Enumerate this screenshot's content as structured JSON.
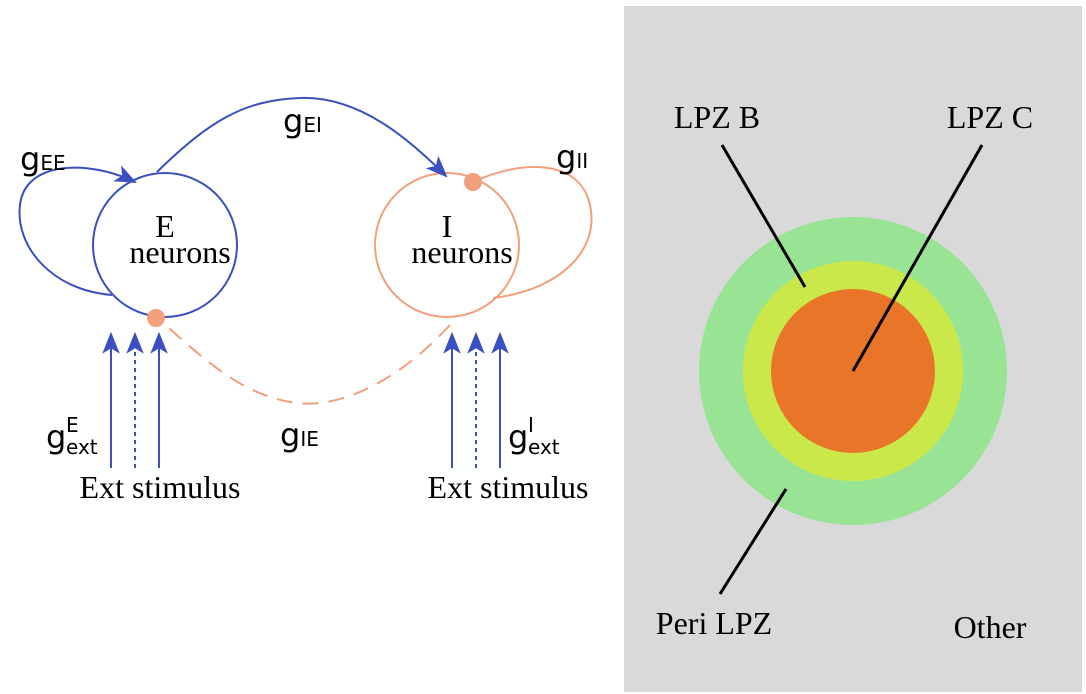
{
  "panel_a": {
    "e_population": {
      "line1": "E",
      "line2": "neurons"
    },
    "i_population": {
      "line1": "I",
      "line2": "neurons"
    },
    "labels": {
      "gEE": {
        "base": "g",
        "sub": "EE"
      },
      "gEI": {
        "base": "g",
        "sub": "EI"
      },
      "gII": {
        "base": "g",
        "sub": "II"
      },
      "gIE": {
        "base": "g",
        "sub": "IE"
      },
      "gextE": {
        "base": "g",
        "sup": "E",
        "sub": "ext"
      },
      "gextI": {
        "base": "g",
        "sup": "I",
        "sub": "ext"
      }
    },
    "stimulus_label_left": "Ext stimulus",
    "stimulus_label_right": "Ext stimulus",
    "colors": {
      "excitatory": "#3a4fc0",
      "inhibitory": "#f2a07c"
    }
  },
  "panel_b": {
    "labels": {
      "lpz_b": "LPZ B",
      "lpz_c": "LPZ C",
      "peri_lpz": "Peri LPZ",
      "other": "Other"
    },
    "colors": {
      "background": "#d9d9d9",
      "peri": "#98e394",
      "lpz_b": "#cbe84a",
      "lpz_c": "#e87528"
    }
  }
}
